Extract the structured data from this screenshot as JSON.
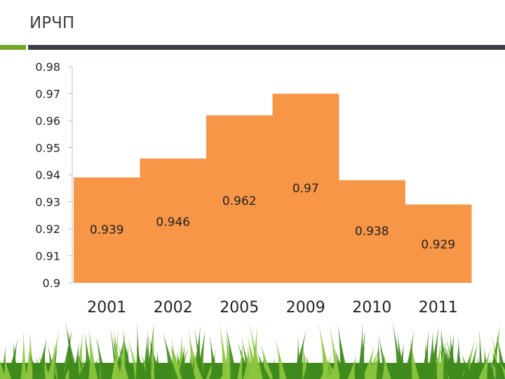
{
  "slide": {
    "title": "ИРЧП"
  },
  "colors": {
    "bar": "#F79646",
    "grass_dark": "#3f8a1c",
    "grass_light": "#8cc63f",
    "accent": "#6fa728",
    "rule": "#3c3f47"
  },
  "chart_data": {
    "type": "bar",
    "title": "",
    "xlabel": "",
    "ylabel": "",
    "categories": [
      "2001",
      "2002",
      "2005",
      "2009",
      "2010",
      "2011"
    ],
    "values": [
      0.939,
      0.946,
      0.962,
      0.97,
      0.938,
      0.929
    ],
    "data_labels": [
      "0.939",
      "0.946",
      "0.962",
      "0.97",
      "0.938",
      "0.929"
    ],
    "ylim": [
      0.9,
      0.98
    ],
    "yticks": [
      0.9,
      0.91,
      0.92,
      0.93,
      0.94,
      0.95,
      0.96,
      0.97,
      0.98
    ],
    "ytick_labels": [
      "0.9",
      "0.91",
      "0.92",
      "0.93",
      "0.94",
      "0.95",
      "0.96",
      "0.97",
      "0.98"
    ],
    "grid": false,
    "legend": "none"
  }
}
